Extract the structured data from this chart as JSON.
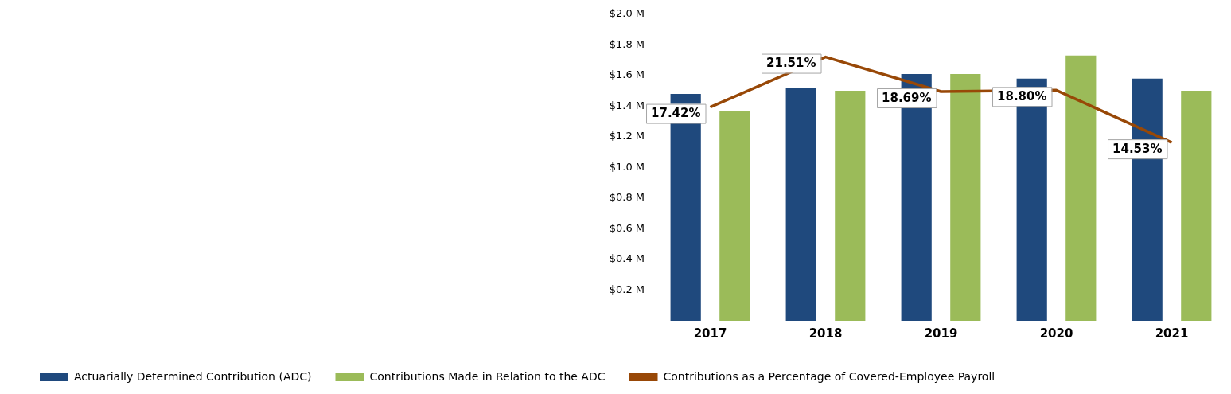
{
  "chart_data": {
    "type": "bar",
    "categories": [
      "2017",
      "2018",
      "2019",
      "2020",
      "2021"
    ],
    "series": [
      {
        "name": "Actuarially Determined Contribution (ADC)",
        "color": "#1f497d",
        "values": [
          1.48,
          1.52,
          1.61,
          1.58,
          1.58
        ]
      },
      {
        "name": "Contributions Made in Relation to the ADC",
        "color": "#9bbb59",
        "values": [
          1.37,
          1.5,
          1.61,
          1.73,
          1.5
        ]
      },
      {
        "name": "Contributions as a Percentage of Covered-Employee Payroll",
        "type": "line",
        "axis": "y2",
        "color": "#984807",
        "values": [
          17.42,
          21.51,
          18.69,
          18.8,
          14.53
        ],
        "value_labels": [
          "17.42%",
          "21.51%",
          "18.69%",
          "18.80%",
          "14.53%"
        ]
      }
    ],
    "ylim": [
      0,
      2
    ],
    "yticks": [
      {
        "value": 0.2,
        "label": "$0.2 M"
      },
      {
        "value": 0.4,
        "label": "$0.4 M"
      },
      {
        "value": 0.6,
        "label": "$0.6 M"
      },
      {
        "value": 0.8,
        "label": "$0.8 M"
      },
      {
        "value": 1.0,
        "label": "$1.0 M"
      },
      {
        "value": 1.2,
        "label": "$1.2 M"
      },
      {
        "value": 1.4,
        "label": "$1.4 M"
      },
      {
        "value": 1.6,
        "label": "$1.6 M"
      },
      {
        "value": 1.8,
        "label": "$1.8 M"
      },
      {
        "value": 2.0,
        "label": "$2.0 M"
      }
    ],
    "tick_labels": "xy",
    "grid": false,
    "legend": "bottom",
    "marker": "none"
  }
}
